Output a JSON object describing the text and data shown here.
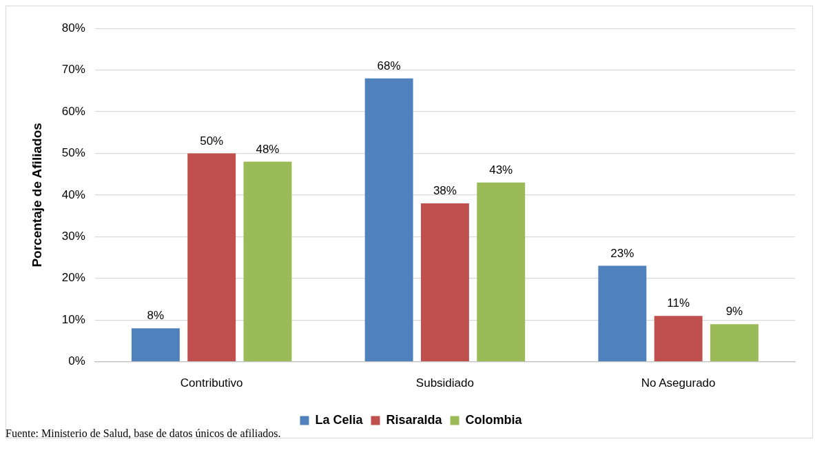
{
  "chart_data": {
    "type": "bar",
    "ylabel": "Porcentaje de Afiliados",
    "categories": [
      "Contributivo",
      "Subsidiado",
      "No Asegurado"
    ],
    "series": [
      {
        "name": "La Celia",
        "color": "#4f81bd",
        "values": [
          8,
          68,
          23
        ],
        "value_labels": [
          "8%",
          "68%",
          "23%"
        ]
      },
      {
        "name": "Risaralda",
        "color": "#c0504d",
        "values": [
          50,
          38,
          11
        ],
        "value_labels": [
          "50%",
          "38%",
          "11%"
        ]
      },
      {
        "name": "Colombia",
        "color": "#9bbb59",
        "values": [
          48,
          43,
          9
        ],
        "value_labels": [
          "48%",
          "43%",
          "9%"
        ]
      }
    ],
    "ylim": [
      0,
      80
    ],
    "yticks": [
      {
        "value": 0,
        "label": "0%"
      },
      {
        "value": 10,
        "label": "10%"
      },
      {
        "value": 20,
        "label": "20%"
      },
      {
        "value": 30,
        "label": "30%"
      },
      {
        "value": 40,
        "label": "40%"
      },
      {
        "value": 50,
        "label": "50%"
      },
      {
        "value": 60,
        "label": "60%"
      },
      {
        "value": 70,
        "label": "70%"
      },
      {
        "value": 80,
        "label": "80%"
      }
    ],
    "grid": "y",
    "legend": "bottom",
    "annotations": [
      "Fuente: Ministerio de Salud, base de datos únicos de afiliados."
    ]
  }
}
